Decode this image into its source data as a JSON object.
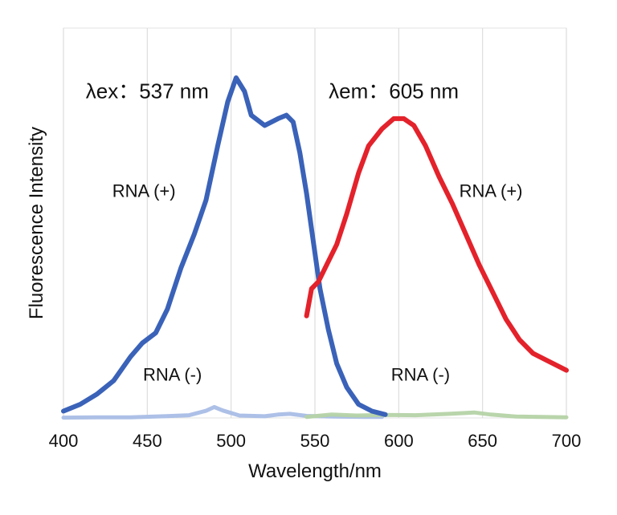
{
  "chart_data": {
    "type": "line",
    "title": "",
    "xlabel": "Wavelength/nm",
    "ylabel": "Fluorescence Intensity",
    "xlim": [
      400,
      700
    ],
    "ylim": [
      0,
      100
    ],
    "x_ticks": [
      400,
      450,
      500,
      550,
      600,
      650,
      700
    ],
    "x_tick_labels": [
      "400",
      "450",
      "500",
      "550",
      "600",
      "650",
      "700"
    ],
    "grid": true,
    "series": [
      {
        "color": "#3a62b8",
        "points": [
          [
            400,
            2
          ],
          [
            410,
            4
          ],
          [
            420,
            7
          ],
          [
            430,
            11
          ],
          [
            440,
            18
          ],
          [
            447,
            22
          ],
          [
            455,
            25
          ],
          [
            462,
            32
          ],
          [
            470,
            44
          ],
          [
            478,
            54
          ],
          [
            485,
            64
          ],
          [
            492,
            80
          ],
          [
            498,
            93
          ],
          [
            503,
            100
          ],
          [
            508,
            96
          ],
          [
            512,
            89
          ],
          [
            520,
            86
          ],
          [
            528,
            88
          ],
          [
            533,
            89
          ],
          [
            537,
            87
          ],
          [
            541,
            78
          ],
          [
            545,
            66
          ],
          [
            549,
            52
          ],
          [
            553,
            38
          ],
          [
            558,
            26
          ],
          [
            563,
            16
          ],
          [
            569,
            9
          ],
          [
            576,
            4
          ],
          [
            584,
            2
          ],
          [
            592,
            1
          ]
        ]
      },
      {
        "color": "#a9bde6",
        "points": [
          [
            400,
            0.1
          ],
          [
            420,
            0.2
          ],
          [
            440,
            0.2
          ],
          [
            460,
            0.5
          ],
          [
            475,
            0.8
          ],
          [
            485,
            2.1
          ],
          [
            490,
            3.2
          ],
          [
            495,
            2.2
          ],
          [
            505,
            0.7
          ],
          [
            520,
            0.5
          ],
          [
            528,
            1.0
          ],
          [
            535,
            1.2
          ],
          [
            545,
            0.6
          ],
          [
            560,
            0.4
          ],
          [
            580,
            0.3
          ],
          [
            590,
            0.3
          ]
        ]
      },
      {
        "color": "#e3222b",
        "points": [
          [
            545,
            30
          ],
          [
            548,
            38
          ],
          [
            552,
            40
          ],
          [
            557,
            45
          ],
          [
            563,
            51
          ],
          [
            569,
            60
          ],
          [
            576,
            72
          ],
          [
            582,
            80
          ],
          [
            590,
            85
          ],
          [
            597,
            88
          ],
          [
            603,
            88
          ],
          [
            609,
            86
          ],
          [
            616,
            80
          ],
          [
            624,
            71
          ],
          [
            632,
            63
          ],
          [
            640,
            54
          ],
          [
            648,
            45
          ],
          [
            656,
            37
          ],
          [
            664,
            29
          ],
          [
            672,
            23
          ],
          [
            680,
            19
          ],
          [
            688,
            17
          ],
          [
            700,
            14
          ]
        ]
      },
      {
        "color": "#b5d3a6",
        "points": [
          [
            545,
            0.3
          ],
          [
            560,
            1.0
          ],
          [
            575,
            0.7
          ],
          [
            590,
            0.9
          ],
          [
            610,
            0.8
          ],
          [
            630,
            1.2
          ],
          [
            645,
            1.6
          ],
          [
            655,
            1.0
          ],
          [
            670,
            0.4
          ],
          [
            685,
            0.3
          ],
          [
            700,
            0.2
          ]
        ]
      }
    ],
    "annotations": [
      {
        "text": "λex：537 nm",
        "x": 450,
        "y": 94,
        "anchor": "middle",
        "kind": "peak"
      },
      {
        "text": "λem：605 nm",
        "x": 597,
        "y": 94,
        "anchor": "middle",
        "kind": "peak"
      },
      {
        "text": "RNA (+)",
        "x": 448,
        "y": 65,
        "anchor": "middle",
        "kind": "curve"
      },
      {
        "text": "RNA (-)",
        "x": 465,
        "y": 11,
        "anchor": "middle",
        "kind": "curve"
      },
      {
        "text": "RNA (+)",
        "x": 655,
        "y": 65,
        "anchor": "middle",
        "kind": "curve"
      },
      {
        "text": "RNA (-)",
        "x": 613,
        "y": 11,
        "anchor": "middle",
        "kind": "curve"
      }
    ]
  }
}
